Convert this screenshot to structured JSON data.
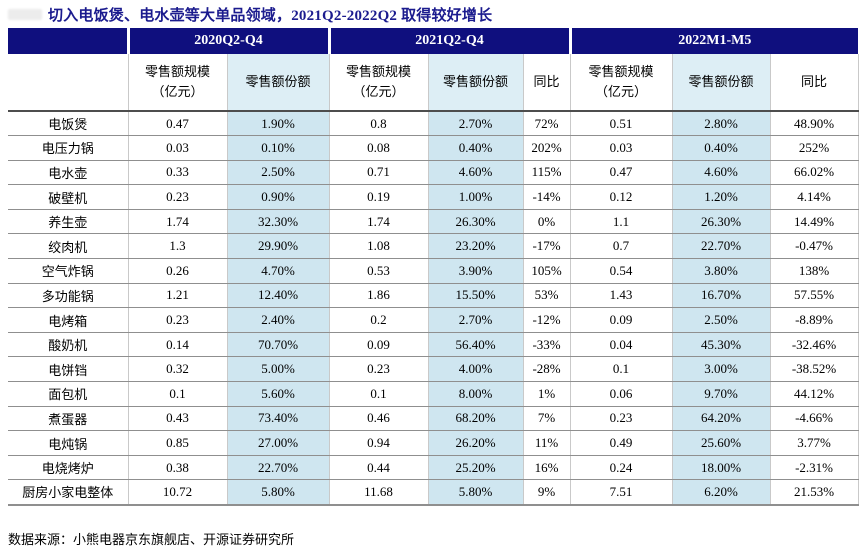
{
  "title": "切入电饭煲、电水壶等大单品领域，2021Q2-2022Q2 取得较好增长",
  "source": "数据来源：小熊电器京东旗舰店、开源证券研究所",
  "colors": {
    "header_bg": "#0f0f7e",
    "title_text": "#1b1b8e",
    "share_column_bg": "#cfe6f0",
    "share_subheader_bg": "#ddeef5",
    "row_border": "#8f8f8f",
    "column_border": "#c9c9c9"
  },
  "chart_data": {
    "type": "table",
    "title": "切入电饭煲、电水壶等大单品领域，2021Q2-2022Q2 取得较好增长",
    "column_groups": [
      {
        "label": "2020Q2-Q4",
        "sub_columns": [
          {
            "lines": [
              "零售额规模",
              "（亿元）"
            ],
            "highlight": false
          },
          {
            "lines": [
              "零售额份额"
            ],
            "highlight": true
          }
        ]
      },
      {
        "label": "2021Q2-Q4",
        "sub_columns": [
          {
            "lines": [
              "零售额规模",
              "（亿元）"
            ],
            "highlight": false
          },
          {
            "lines": [
              "零售额份额"
            ],
            "highlight": true
          },
          {
            "lines": [
              "同比"
            ],
            "highlight": false
          }
        ]
      },
      {
        "label": "2022M1-M5",
        "sub_columns": [
          {
            "lines": [
              "零售额规模",
              "（亿元）"
            ],
            "highlight": false
          },
          {
            "lines": [
              "零售额份额"
            ],
            "highlight": true
          },
          {
            "lines": [
              "同比"
            ],
            "highlight": false
          }
        ]
      }
    ],
    "rows": [
      {
        "label": "电饭煲",
        "values": [
          "0.47",
          "1.90%",
          "0.8",
          "2.70%",
          "72%",
          "0.51",
          "2.80%",
          "48.90%"
        ]
      },
      {
        "label": "电压力锅",
        "values": [
          "0.03",
          "0.10%",
          "0.08",
          "0.40%",
          "202%",
          "0.03",
          "0.40%",
          "252%"
        ]
      },
      {
        "label": "电水壶",
        "values": [
          "0.33",
          "2.50%",
          "0.71",
          "4.60%",
          "115%",
          "0.47",
          "4.60%",
          "66.02%"
        ]
      },
      {
        "label": "破壁机",
        "values": [
          "0.23",
          "0.90%",
          "0.19",
          "1.00%",
          "-14%",
          "0.12",
          "1.20%",
          "4.14%"
        ]
      },
      {
        "label": "养生壶",
        "values": [
          "1.74",
          "32.30%",
          "1.74",
          "26.30%",
          "0%",
          "1.1",
          "26.30%",
          "14.49%"
        ]
      },
      {
        "label": "绞肉机",
        "values": [
          "1.3",
          "29.90%",
          "1.08",
          "23.20%",
          "-17%",
          "0.7",
          "22.70%",
          "-0.47%"
        ]
      },
      {
        "label": "空气炸锅",
        "values": [
          "0.26",
          "4.70%",
          "0.53",
          "3.90%",
          "105%",
          "0.54",
          "3.80%",
          "138%"
        ]
      },
      {
        "label": "多功能锅",
        "values": [
          "1.21",
          "12.40%",
          "1.86",
          "15.50%",
          "53%",
          "1.43",
          "16.70%",
          "57.55%"
        ]
      },
      {
        "label": "电烤箱",
        "values": [
          "0.23",
          "2.40%",
          "0.2",
          "2.70%",
          "-12%",
          "0.09",
          "2.50%",
          "-8.89%"
        ]
      },
      {
        "label": "酸奶机",
        "values": [
          "0.14",
          "70.70%",
          "0.09",
          "56.40%",
          "-33%",
          "0.04",
          "45.30%",
          "-32.46%"
        ]
      },
      {
        "label": "电饼铛",
        "values": [
          "0.32",
          "5.00%",
          "0.23",
          "4.00%",
          "-28%",
          "0.1",
          "3.00%",
          "-38.52%"
        ]
      },
      {
        "label": "面包机",
        "values": [
          "0.1",
          "5.60%",
          "0.1",
          "8.00%",
          "1%",
          "0.06",
          "9.70%",
          "44.12%"
        ]
      },
      {
        "label": "煮蛋器",
        "values": [
          "0.43",
          "73.40%",
          "0.46",
          "68.20%",
          "7%",
          "0.23",
          "64.20%",
          "-4.66%"
        ]
      },
      {
        "label": "电炖锅",
        "values": [
          "0.85",
          "27.00%",
          "0.94",
          "26.20%",
          "11%",
          "0.49",
          "25.60%",
          "3.77%"
        ]
      },
      {
        "label": "电烧烤炉",
        "values": [
          "0.38",
          "22.70%",
          "0.44",
          "25.20%",
          "16%",
          "0.24",
          "18.00%",
          "-2.31%"
        ]
      },
      {
        "label": "厨房小家电整体",
        "values": [
          "10.72",
          "5.80%",
          "11.68",
          "5.80%",
          "9%",
          "7.51",
          "6.20%",
          "21.53%"
        ]
      }
    ]
  }
}
